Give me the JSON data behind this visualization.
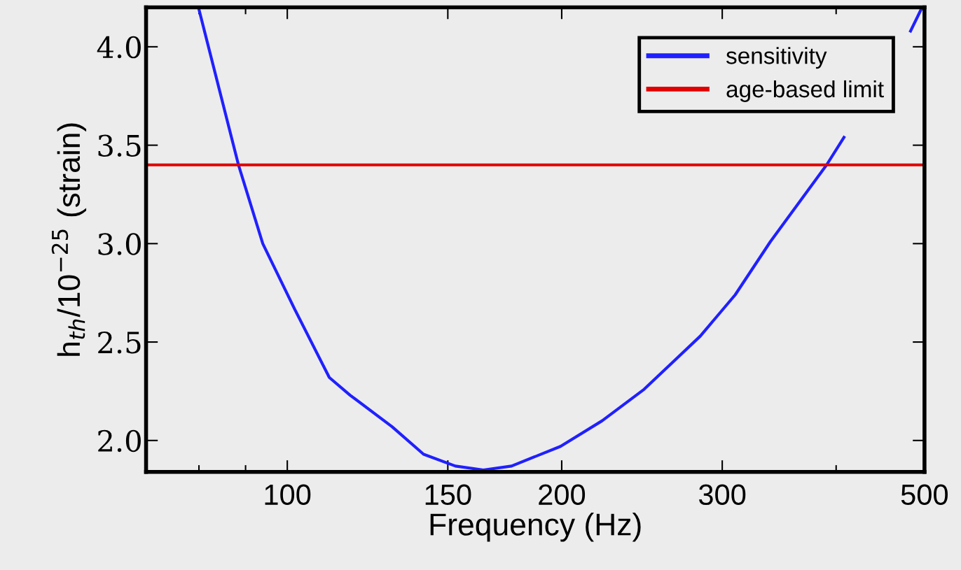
{
  "chart_data": {
    "type": "line",
    "xlabel": "Frequency (Hz)",
    "ylabel": "h$_{th}$/10$^{−25}$ (strain)",
    "log": "x",
    "xlim": [
      70,
      500
    ],
    "xticks": [
      {
        "value": 80,
        "label": null
      },
      {
        "value": 90,
        "label": null
      },
      100,
      150,
      200,
      300,
      {
        "value": 400,
        "label": null
      },
      500
    ],
    "ylim": [
      1.84,
      4.2
    ],
    "yticks": [
      {
        "value": 2,
        "label": "2.0"
      },
      2.5,
      {
        "value": 3,
        "label": "3.0"
      },
      3.5,
      {
        "value": 4,
        "label": "4.0"
      }
    ],
    "series": [
      {
        "name": "sensitivity",
        "color": "#2020ff",
        "x": [
          79.9,
          88.4,
          94.0,
          101.8,
          111.2,
          117.2,
          130.3,
          141.1,
          152.9,
          164.1,
          176.2,
          199.4,
          221.5,
          246.3,
          283.8,
          310.0,
          338.8,
          390.5,
          408,
          440,
          482.7,
          495.8
        ],
        "values": [
          4.2,
          3.4,
          3.0,
          2.67,
          2.32,
          2.23,
          2.07,
          1.93,
          1.87,
          1.85,
          1.87,
          1.97,
          2.1,
          2.26,
          2.53,
          2.74,
          3.01,
          3.4,
          3.54,
          null,
          4.08,
          4.19
        ]
      },
      {
        "name": "age-based limit",
        "color": "#e00000",
        "x": [
          70,
          500
        ],
        "values": [
          3.4,
          3.4
        ]
      }
    ],
    "legend": "top right",
    "grid": false,
    "marker": "none",
    "line_style": "solid"
  }
}
